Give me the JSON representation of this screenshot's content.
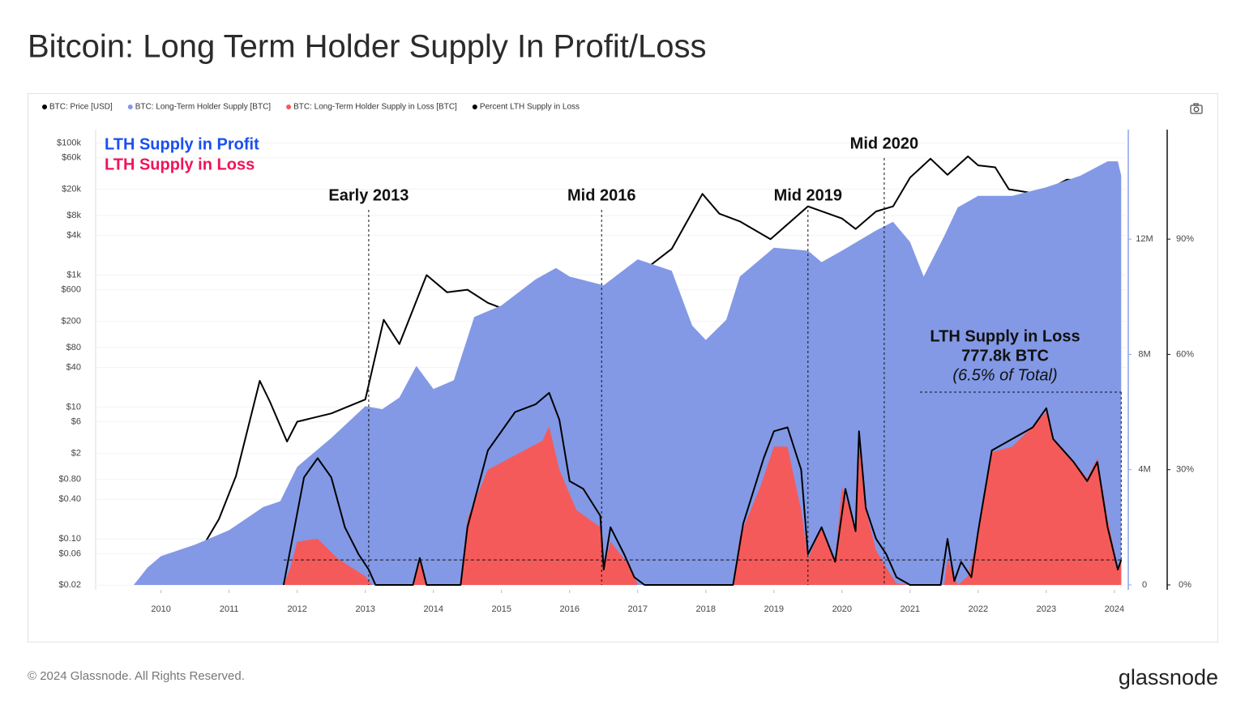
{
  "chart_data": {
    "type": "area",
    "title": "Bitcoin: Long Term Holder Supply In Profit/Loss",
    "xlim": [
      2009.04,
      2024.18
    ],
    "xticks": [
      2010,
      2011,
      2012,
      2013,
      2014,
      2015,
      2016,
      2017,
      2018,
      2019,
      2020,
      2021,
      2022,
      2023,
      2024
    ],
    "ylim": [
      0.017,
      160000
    ],
    "yscale": "log",
    "yticks": [
      {
        "value": 100000,
        "label": "$100k"
      },
      {
        "value": 60000,
        "label": "$60k"
      },
      {
        "value": 20000,
        "label": "$20k"
      },
      {
        "value": 8000,
        "label": "$8k"
      },
      {
        "value": 4000,
        "label": "$4k"
      },
      {
        "value": 1000,
        "label": "$1k"
      },
      {
        "value": 600,
        "label": "$600"
      },
      {
        "value": 200,
        "label": "$200"
      },
      {
        "value": 80,
        "label": "$80"
      },
      {
        "value": 40,
        "label": "$40"
      },
      {
        "value": 10,
        "label": "$10"
      },
      {
        "value": 6,
        "label": "$6"
      },
      {
        "value": 2,
        "label": "$2"
      },
      {
        "value": 0.8,
        "label": "$0.80"
      },
      {
        "value": 0.4,
        "label": "$0.40"
      },
      {
        "value": 0.1,
        "label": "$0.10"
      },
      {
        "value": 0.06,
        "label": "$0.06"
      },
      {
        "value": 0.02,
        "label": "$0.02"
      }
    ],
    "y2lim": [
      -170000,
      15800000
    ],
    "y2ticks": [
      0,
      {
        "value": 4000000,
        "label": "4M"
      },
      {
        "value": 8000000,
        "label": "8M"
      },
      {
        "value": 12000000,
        "label": "12M"
      }
    ],
    "y3lim": [
      -1.27,
      118.5
    ],
    "y3ticks": [
      {
        "value": 0,
        "label": "0%"
      },
      {
        "value": 30,
        "label": "30%"
      },
      {
        "value": 60,
        "label": "60%"
      },
      {
        "value": 90,
        "label": "90%"
      }
    ],
    "grid": true,
    "series": [
      {
        "name": "BTC: Price [USD]",
        "color": "#000000",
        "axis": "y",
        "style": "line",
        "x": [
          2010.55,
          2010.85,
          2011.1,
          2011.45,
          2011.6,
          2011.85,
          2012.0,
          2012.5,
          2013.0,
          2013.27,
          2013.5,
          2013.9,
          2014.2,
          2014.5,
          2014.8,
          2015.3,
          2015.8,
          2016.0,
          2016.5,
          2017.0,
          2017.5,
          2017.95,
          2018.2,
          2018.5,
          2018.95,
          2019.5,
          2020.0,
          2020.2,
          2020.5,
          2020.75,
          2021.0,
          2021.3,
          2021.55,
          2021.85,
          2022.0,
          2022.25,
          2022.45,
          2022.9,
          2023.3,
          2023.7,
          2024.0
        ],
        "values": [
          0.06,
          0.2,
          0.9,
          25,
          12,
          3,
          6,
          8,
          13,
          210,
          90,
          1000,
          550,
          600,
          380,
          240,
          320,
          430,
          650,
          1000,
          2500,
          17000,
          8500,
          6500,
          3500,
          11000,
          7200,
          5000,
          9200,
          11000,
          30000,
          58000,
          33000,
          63000,
          46000,
          43000,
          20000,
          16800,
          28000,
          27000,
          44000
        ]
      },
      {
        "name": "BTC: Long-Term Holder Supply [BTC]",
        "color": "#8399e6",
        "axis": "y2",
        "style": "area",
        "x": [
          2009.6,
          2009.8,
          2010.0,
          2010.5,
          2011.0,
          2011.5,
          2011.75,
          2012.0,
          2012.5,
          2013.0,
          2013.25,
          2013.5,
          2013.75,
          2014.0,
          2014.3,
          2014.6,
          2015.0,
          2015.5,
          2015.8,
          2016.0,
          2016.5,
          2017.0,
          2017.5,
          2017.8,
          2018.0,
          2018.3,
          2018.5,
          2019.0,
          2019.5,
          2019.7,
          2020.0,
          2020.5,
          2020.75,
          2021.0,
          2021.2,
          2021.5,
          2021.7,
          2022.0,
          2022.5,
          2023.0,
          2023.5,
          2023.9,
          2024.05,
          2024.1
        ],
        "values": [
          0,
          600000,
          1000000,
          1400000,
          1900000,
          2700000,
          2900000,
          4100000,
          5100000,
          6200000,
          6100000,
          6500000,
          7600000,
          6800000,
          7100000,
          9300000,
          9700000,
          10600000,
          11000000,
          10700000,
          10400000,
          11300000,
          10900000,
          9000000,
          8500000,
          9200000,
          10700000,
          11700000,
          11600000,
          11200000,
          11600000,
          12300000,
          12600000,
          11900000,
          10700000,
          12100000,
          13100000,
          13500000,
          13500000,
          13800000,
          14200000,
          14700000,
          14700000,
          14200000
        ]
      },
      {
        "name": "BTC: Long-Term Holder Supply in Loss [BTC]",
        "color": "#f55a5a",
        "axis": "y2",
        "style": "area",
        "x": [
          2011.8,
          2011.9,
          2012.0,
          2012.3,
          2012.6,
          2013.0,
          2013.1,
          2013.7,
          2013.8,
          2013.9,
          2014.4,
          2014.5,
          2014.8,
          2015.2,
          2015.6,
          2015.7,
          2015.85,
          2016.1,
          2016.45,
          2016.5,
          2016.6,
          2016.9,
          2017.0,
          2018.4,
          2018.5,
          2018.8,
          2019.0,
          2019.2,
          2019.4,
          2019.5,
          2019.7,
          2019.9,
          2020.0,
          2020.2,
          2020.25,
          2020.35,
          2020.5,
          2020.65,
          2020.8,
          2021.0,
          2021.5,
          2021.55,
          2021.7,
          2021.85,
          2022.0,
          2022.2,
          2022.5,
          2022.8,
          2023.0,
          2023.1,
          2023.4,
          2023.6,
          2023.75,
          2023.9,
          2024.05,
          2024.1
        ],
        "values": [
          0,
          600000,
          1500000,
          1600000,
          900000,
          300000,
          0,
          0,
          800000,
          0,
          0,
          2300000,
          4000000,
          4500000,
          5000000,
          5500000,
          4000000,
          2600000,
          2000000,
          600000,
          1500000,
          600000,
          0,
          0,
          1700000,
          3400000,
          4800000,
          4800000,
          2600000,
          900000,
          2000000,
          900000,
          3400000,
          2000000,
          5100000,
          2600000,
          1200000,
          600000,
          50000,
          0,
          0,
          900000,
          0,
          300000,
          1700000,
          4600000,
          4800000,
          5500000,
          6000000,
          5100000,
          4300000,
          3700000,
          4400000,
          2300000,
          600000,
          777800
        ]
      },
      {
        "name": "Percent LTH Supply in Loss",
        "color": "#000000",
        "axis": "y3",
        "style": "line",
        "x": [
          2011.8,
          2011.95,
          2012.1,
          2012.3,
          2012.5,
          2012.7,
          2012.9,
          2013.05,
          2013.15,
          2013.7,
          2013.8,
          2013.9,
          2014.4,
          2014.5,
          2014.8,
          2015.2,
          2015.5,
          2015.7,
          2015.85,
          2016.0,
          2016.2,
          2016.45,
          2016.5,
          2016.6,
          2016.8,
          2016.95,
          2017.1,
          2018.4,
          2018.55,
          2018.85,
          2019.0,
          2019.2,
          2019.4,
          2019.5,
          2019.7,
          2019.9,
          2020.05,
          2020.2,
          2020.25,
          2020.35,
          2020.5,
          2020.65,
          2020.8,
          2021.0,
          2021.45,
          2021.55,
          2021.65,
          2021.75,
          2021.9,
          2022.0,
          2022.2,
          2022.5,
          2022.8,
          2023.0,
          2023.1,
          2023.4,
          2023.6,
          2023.75,
          2023.9,
          2024.05,
          2024.1
        ],
        "values": [
          0,
          14,
          28,
          33,
          28,
          15,
          8,
          4,
          0,
          0,
          7,
          0,
          0,
          15,
          35,
          45,
          47,
          50,
          43,
          27,
          25,
          18,
          4,
          15,
          8,
          2,
          0,
          0,
          16,
          33,
          40,
          41,
          30,
          8,
          15,
          6,
          25,
          14,
          40,
          20,
          12,
          8,
          2,
          0,
          0,
          12,
          1,
          6,
          2,
          14,
          35,
          38,
          41,
          46,
          38,
          32,
          27,
          32,
          15,
          4,
          6.5
        ]
      }
    ],
    "area_labels": [
      {
        "text": "LTH Supply in Profit",
        "color": "#1a4ff0"
      },
      {
        "text": "LTH Supply in Loss",
        "color": "#f0145a"
      }
    ],
    "annotations": [
      {
        "text": "Early 2013",
        "x": 2013.05
      },
      {
        "text": "Mid 2016",
        "x": 2016.47
      },
      {
        "text": "Mid 2019",
        "x": 2019.5
      },
      {
        "text": "Mid 2020",
        "x": 2020.62
      }
    ],
    "callout": {
      "lines": [
        "LTH Supply in Loss",
        "777.8k BTC",
        "(6.5% of Total)"
      ]
    },
    "footer": "© 2024 Glassnode. All Rights Reserved.",
    "brand": "glassnode"
  }
}
